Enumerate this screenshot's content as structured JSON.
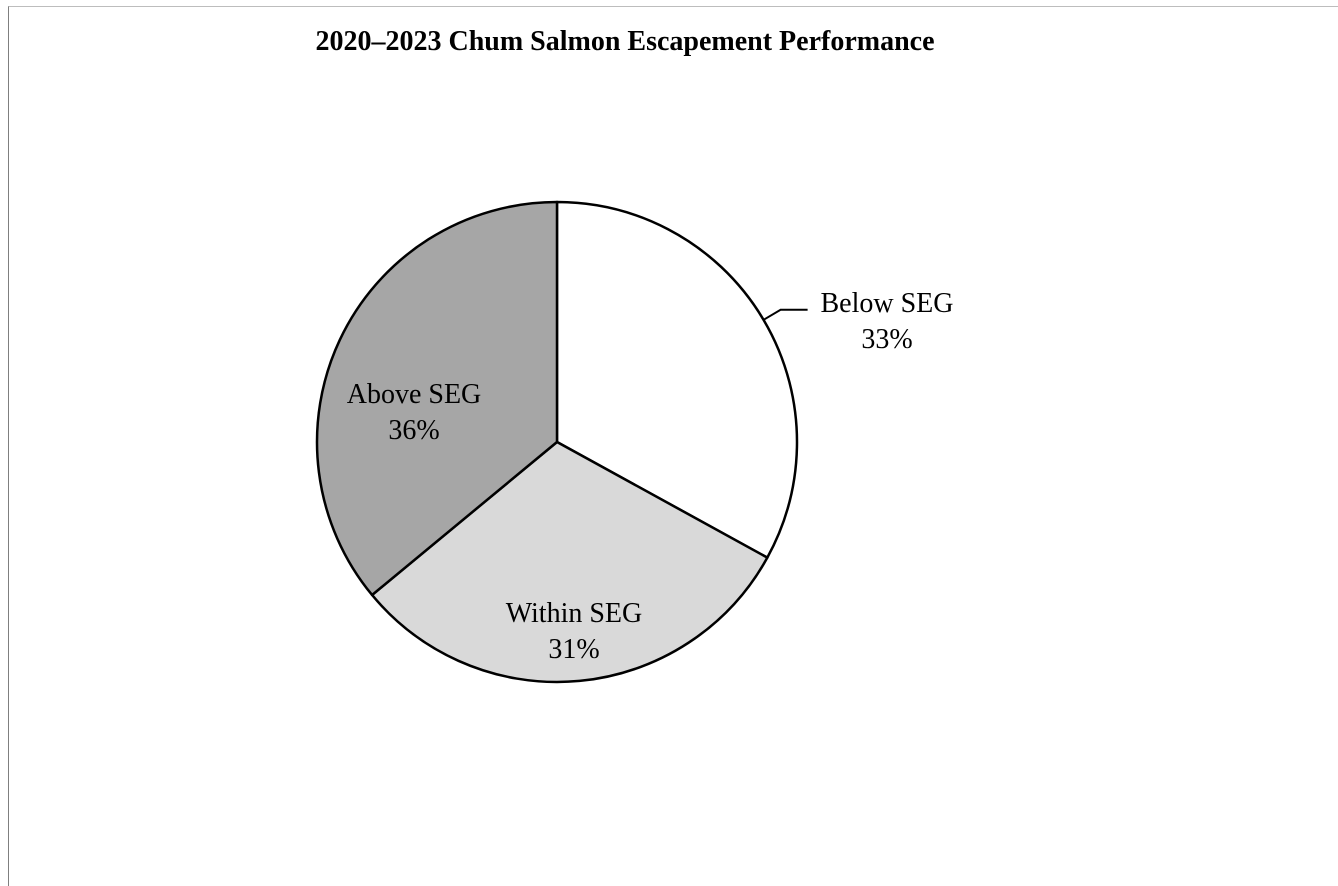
{
  "chart_data": {
    "type": "pie",
    "title": "2020–2023 Chum Salmon Escapement Performance",
    "slices": [
      {
        "label": "Below SEG",
        "value": 33,
        "value_label": "33%",
        "color": "#ffffff"
      },
      {
        "label": "Within SEG",
        "value": 31,
        "value_label": "31%",
        "color": "#d9d9d9"
      },
      {
        "label": "Above SEG",
        "value": 36,
        "value_label": "36%",
        "color": "#a6a6a6"
      }
    ],
    "start_angle": "top",
    "direction": "clockwise",
    "legend": "none"
  }
}
